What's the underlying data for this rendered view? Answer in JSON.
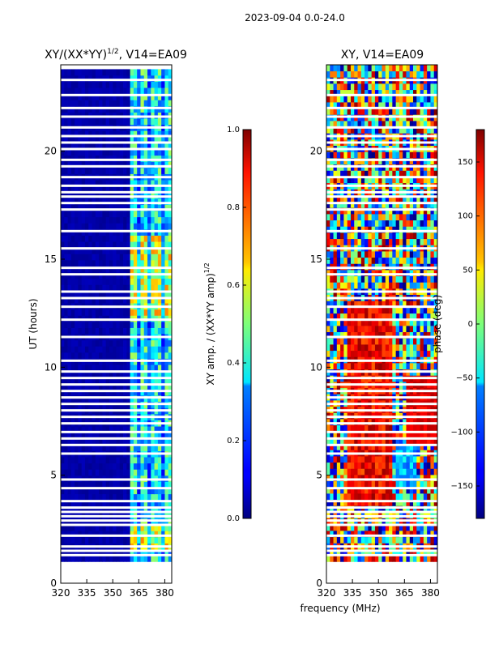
{
  "figure": {
    "suptitle": "2023-09-04 0.0-24.0",
    "xlabel": "frequency (MHz)"
  },
  "chart_data": [
    {
      "type": "heatmap",
      "title_main": "XY/(XX*YY)",
      "title_sup": "1/2",
      "title_rest": ", V14=EA09",
      "xlabel": "",
      "ylabel": "UT (hours)",
      "xlim": [
        320,
        384
      ],
      "ylim": [
        0,
        24
      ],
      "xticks": [
        "320",
        "335",
        "350",
        "365",
        "380"
      ],
      "xtick_values": [
        320,
        335,
        350,
        365,
        380
      ],
      "yticks": [
        "0",
        "5",
        "10",
        "15",
        "20"
      ],
      "ytick_values": [
        0,
        5,
        10,
        15,
        20
      ],
      "data_start_hour": 1.0,
      "data_end_hour": 23.8,
      "colorbar": {
        "label_main": "XY amp. / (XX*YY amp)",
        "label_sup": "1/2",
        "range": [
          0.0,
          1.0
        ],
        "ticks": [
          "0.0",
          "0.2",
          "0.4",
          "0.6",
          "0.8",
          "1.0"
        ],
        "tick_values": [
          0.0,
          0.2,
          0.4,
          0.6,
          0.8,
          1.0
        ]
      }
    },
    {
      "type": "heatmap",
      "title_main": "XY, V14=EA09",
      "xlabel": "frequency (MHz)",
      "ylabel": "",
      "xlim": [
        320,
        384
      ],
      "ylim": [
        0,
        24
      ],
      "xticks": [
        "320",
        "335",
        "350",
        "365",
        "380"
      ],
      "xtick_values": [
        320,
        335,
        350,
        365,
        380
      ],
      "yticks": [
        "0",
        "5",
        "10",
        "15",
        "20"
      ],
      "ytick_values": [
        0,
        5,
        10,
        15,
        20
      ],
      "data_start_hour": 1.0,
      "data_end_hour": 24.0,
      "colorbar": {
        "label_main": "phase (deg)",
        "range": [
          -180,
          180
        ],
        "ticks": [
          "150",
          "100",
          "50",
          "0",
          "−50",
          "−100",
          "−150"
        ],
        "tick_values": [
          150,
          100,
          50,
          0,
          -50,
          -100,
          -150
        ]
      }
    }
  ],
  "flagged_hours": [
    1.3,
    1.5,
    1.7,
    2.2,
    2.7,
    2.9,
    3.1,
    3.3,
    3.5,
    3.8,
    4.4,
    4.8,
    6.0,
    6.4,
    6.7,
    7.0,
    7.4,
    7.7,
    8.0,
    8.3,
    8.6,
    8.9,
    9.2,
    9.5,
    9.8,
    10.3,
    11.4,
    12.2,
    12.8,
    13.2,
    13.5,
    14.3,
    14.6,
    15.5,
    16.3,
    17.3,
    17.6,
    17.9,
    18.1,
    18.4,
    18.8,
    19.3,
    19.6,
    20.1,
    20.4,
    20.7,
    21.1,
    21.6,
    22.0,
    22.6,
    23.3
  ]
}
